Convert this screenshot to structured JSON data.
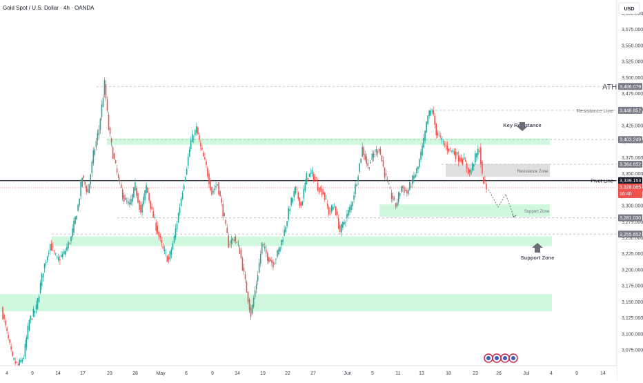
{
  "header": {
    "title": "Gold Spot / U.S. Dollar · 4h · OANDA",
    "currency_button": "USD"
  },
  "colors": {
    "up": "#26a69a",
    "down": "#ef5350",
    "zone": "#c8f7d8",
    "resistance_zone": "#d9d9d9",
    "pivot": "#131722",
    "dashed": "#b2b5be",
    "current": "#ef5350",
    "text": "#131722",
    "ann_text": "#6a6d78"
  },
  "chart_data": {
    "type": "candlestick",
    "symbol": "Gold Spot / U.S. Dollar",
    "interval": "4h",
    "source": "OANDA",
    "ylim": [
      3050,
      3612
    ],
    "y_ticks": [
      3075,
      3100,
      3125,
      3150,
      3175,
      3200,
      3225,
      3250,
      3275,
      3300,
      3325,
      3350,
      3375,
      3400,
      3425,
      3450,
      3475,
      3500,
      3525,
      3550,
      3575,
      3600
    ],
    "x_ticks": [
      "4",
      "9",
      "14",
      "17",
      "23",
      "28",
      "May",
      "6",
      "9",
      "14",
      "19",
      "22",
      "27",
      "Jun",
      "5",
      "11",
      "13",
      "18",
      "23",
      "26",
      "Jul",
      "4",
      "9",
      "14"
    ],
    "candle_path_points": [
      {
        "i": 0,
        "v": 3140
      },
      {
        "i": 4,
        "v": 3100
      },
      {
        "i": 8,
        "v": 3060
      },
      {
        "i": 12,
        "v": 3050
      },
      {
        "i": 16,
        "v": 3065
      },
      {
        "i": 20,
        "v": 3120
      },
      {
        "i": 25,
        "v": 3140
      },
      {
        "i": 30,
        "v": 3200
      },
      {
        "i": 35,
        "v": 3240
      },
      {
        "i": 40,
        "v": 3215
      },
      {
        "i": 45,
        "v": 3225
      },
      {
        "i": 50,
        "v": 3250
      },
      {
        "i": 55,
        "v": 3300
      },
      {
        "i": 58,
        "v": 3345
      },
      {
        "i": 62,
        "v": 3320
      },
      {
        "i": 66,
        "v": 3380
      },
      {
        "i": 70,
        "v": 3420
      },
      {
        "i": 74,
        "v": 3490
      },
      {
        "i": 77,
        "v": 3420
      },
      {
        "i": 80,
        "v": 3380
      },
      {
        "i": 84,
        "v": 3340
      },
      {
        "i": 88,
        "v": 3310
      },
      {
        "i": 92,
        "v": 3300
      },
      {
        "i": 96,
        "v": 3330
      },
      {
        "i": 100,
        "v": 3290
      },
      {
        "i": 104,
        "v": 3330
      },
      {
        "i": 108,
        "v": 3290
      },
      {
        "i": 112,
        "v": 3260
      },
      {
        "i": 116,
        "v": 3230
      },
      {
        "i": 120,
        "v": 3215
      },
      {
        "i": 124,
        "v": 3250
      },
      {
        "i": 128,
        "v": 3300
      },
      {
        "i": 132,
        "v": 3350
      },
      {
        "i": 136,
        "v": 3400
      },
      {
        "i": 140,
        "v": 3420
      },
      {
        "i": 143,
        "v": 3390
      },
      {
        "i": 147,
        "v": 3360
      },
      {
        "i": 151,
        "v": 3320
      },
      {
        "i": 155,
        "v": 3335
      },
      {
        "i": 159,
        "v": 3290
      },
      {
        "i": 163,
        "v": 3240
      },
      {
        "i": 167,
        "v": 3250
      },
      {
        "i": 171,
        "v": 3230
      },
      {
        "i": 175,
        "v": 3180
      },
      {
        "i": 179,
        "v": 3130
      },
      {
        "i": 183,
        "v": 3180
      },
      {
        "i": 187,
        "v": 3240
      },
      {
        "i": 191,
        "v": 3220
      },
      {
        "i": 195,
        "v": 3210
      },
      {
        "i": 199,
        "v": 3230
      },
      {
        "i": 203,
        "v": 3260
      },
      {
        "i": 207,
        "v": 3300
      },
      {
        "i": 211,
        "v": 3325
      },
      {
        "i": 215,
        "v": 3300
      },
      {
        "i": 219,
        "v": 3345
      },
      {
        "i": 223,
        "v": 3350
      },
      {
        "i": 227,
        "v": 3330
      },
      {
        "i": 231,
        "v": 3320
      },
      {
        "i": 235,
        "v": 3290
      },
      {
        "i": 239,
        "v": 3300
      },
      {
        "i": 243,
        "v": 3260
      },
      {
        "i": 247,
        "v": 3280
      },
      {
        "i": 251,
        "v": 3300
      },
      {
        "i": 255,
        "v": 3340
      },
      {
        "i": 259,
        "v": 3390
      },
      {
        "i": 263,
        "v": 3360
      },
      {
        "i": 267,
        "v": 3380
      },
      {
        "i": 271,
        "v": 3390
      },
      {
        "i": 275,
        "v": 3350
      },
      {
        "i": 279,
        "v": 3320
      },
      {
        "i": 283,
        "v": 3300
      },
      {
        "i": 287,
        "v": 3330
      },
      {
        "i": 291,
        "v": 3320
      },
      {
        "i": 295,
        "v": 3340
      },
      {
        "i": 299,
        "v": 3360
      },
      {
        "i": 303,
        "v": 3400
      },
      {
        "i": 306,
        "v": 3440
      },
      {
        "i": 309,
        "v": 3450
      },
      {
        "i": 312,
        "v": 3415
      },
      {
        "i": 316,
        "v": 3400
      },
      {
        "i": 320,
        "v": 3390
      },
      {
        "i": 324,
        "v": 3385
      },
      {
        "i": 328,
        "v": 3375
      },
      {
        "i": 332,
        "v": 3370
      },
      {
        "i": 336,
        "v": 3350
      },
      {
        "i": 340,
        "v": 3375
      },
      {
        "i": 343,
        "v": 3390
      },
      {
        "i": 345,
        "v": 3345
      },
      {
        "i": 348,
        "v": 3328
      }
    ],
    "current_price": 3328.065,
    "countdown": "16:40",
    "levels": [
      {
        "name": "ATH",
        "value": 3486.079,
        "label": "ATH",
        "price_tag": "3,486.079"
      },
      {
        "name": "resistance-line",
        "value": 3448.852,
        "label": "Resistance Line",
        "price_tag": "3,448.852"
      },
      {
        "name": "key-resistance",
        "value": 3403.249,
        "label": "Key Resistance",
        "price_tag": "3,403.249"
      },
      {
        "name": "resistance-zone-top",
        "value": 3364.652,
        "label": "",
        "price_tag": "3,364.652"
      },
      {
        "name": "pivot-line",
        "value": 3339.153,
        "label": "Pivot Line",
        "price_tag": "3,339.153"
      },
      {
        "name": "support-level",
        "value": 3281.03,
        "label": "",
        "price_tag": "3,281.030"
      },
      {
        "name": "support-zone-level",
        "value": 3255.652,
        "label": "",
        "price_tag": "3,255.652"
      }
    ],
    "zones": [
      {
        "name": "upper-green-zone",
        "from": 3395,
        "to": 3405
      },
      {
        "name": "resistance-zone",
        "from": 3345,
        "to": 3365,
        "label": "Resistance Zone"
      },
      {
        "name": "support-zone-small",
        "from": 3283,
        "to": 3302,
        "label": "Support Zone"
      },
      {
        "name": "support-zone-wide",
        "from": 3237,
        "to": 3252,
        "label": "Support Zone"
      },
      {
        "name": "lower-green-zone",
        "from": 3135,
        "to": 3162
      }
    ],
    "projection": [
      3325,
      3298,
      3318,
      3282
    ]
  }
}
